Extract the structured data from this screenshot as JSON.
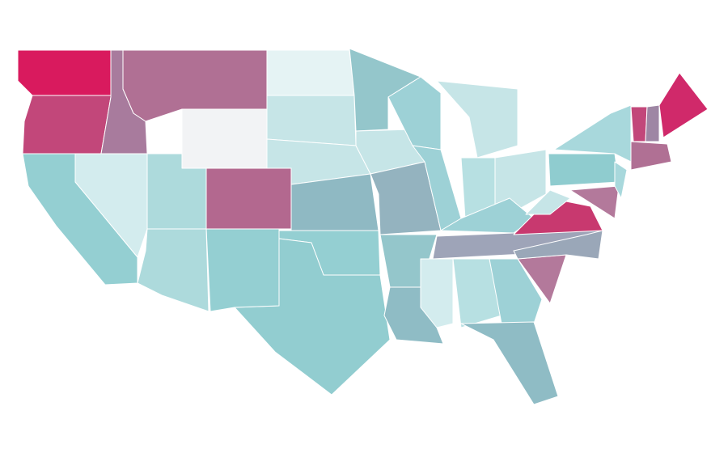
{
  "map": {
    "fills": [
      "#d91a5e",
      "#c2477a",
      "#a87b9d",
      "#b07094",
      "#f2f3f5",
      "#e5f3f4",
      "#c6e5e7",
      "#c6e5e7",
      "#8fb9c3",
      "#94cfd2",
      "#92cdd0",
      "#94cfd2",
      "#b3688f",
      "#addadc",
      "#addadc",
      "#d3ecee",
      "#94cfd2",
      "#94c6cb",
      "#c6e5e7",
      "#94b3bf",
      "#94c6cb",
      "#8fbcc5",
      "#9dd1d6",
      "#9dd1d6",
      "#c6e5e7",
      "#b7e0e2",
      "#c6e5e7",
      "#9dd1d6",
      "#9ea4b8",
      "#d3ecee",
      "#b7e0e2",
      "#9dd1d6",
      "#8fbcc5",
      "#b3799b",
      "#9aa7b8",
      "#c8396f",
      "#c6e5e7",
      "#8fcccf",
      "#a8d8dc",
      "#b3799b",
      "#a8d8dc",
      "#c2477a",
      "#9e86a4",
      "#d0296a",
      "#b07094"
    ]
  }
}
